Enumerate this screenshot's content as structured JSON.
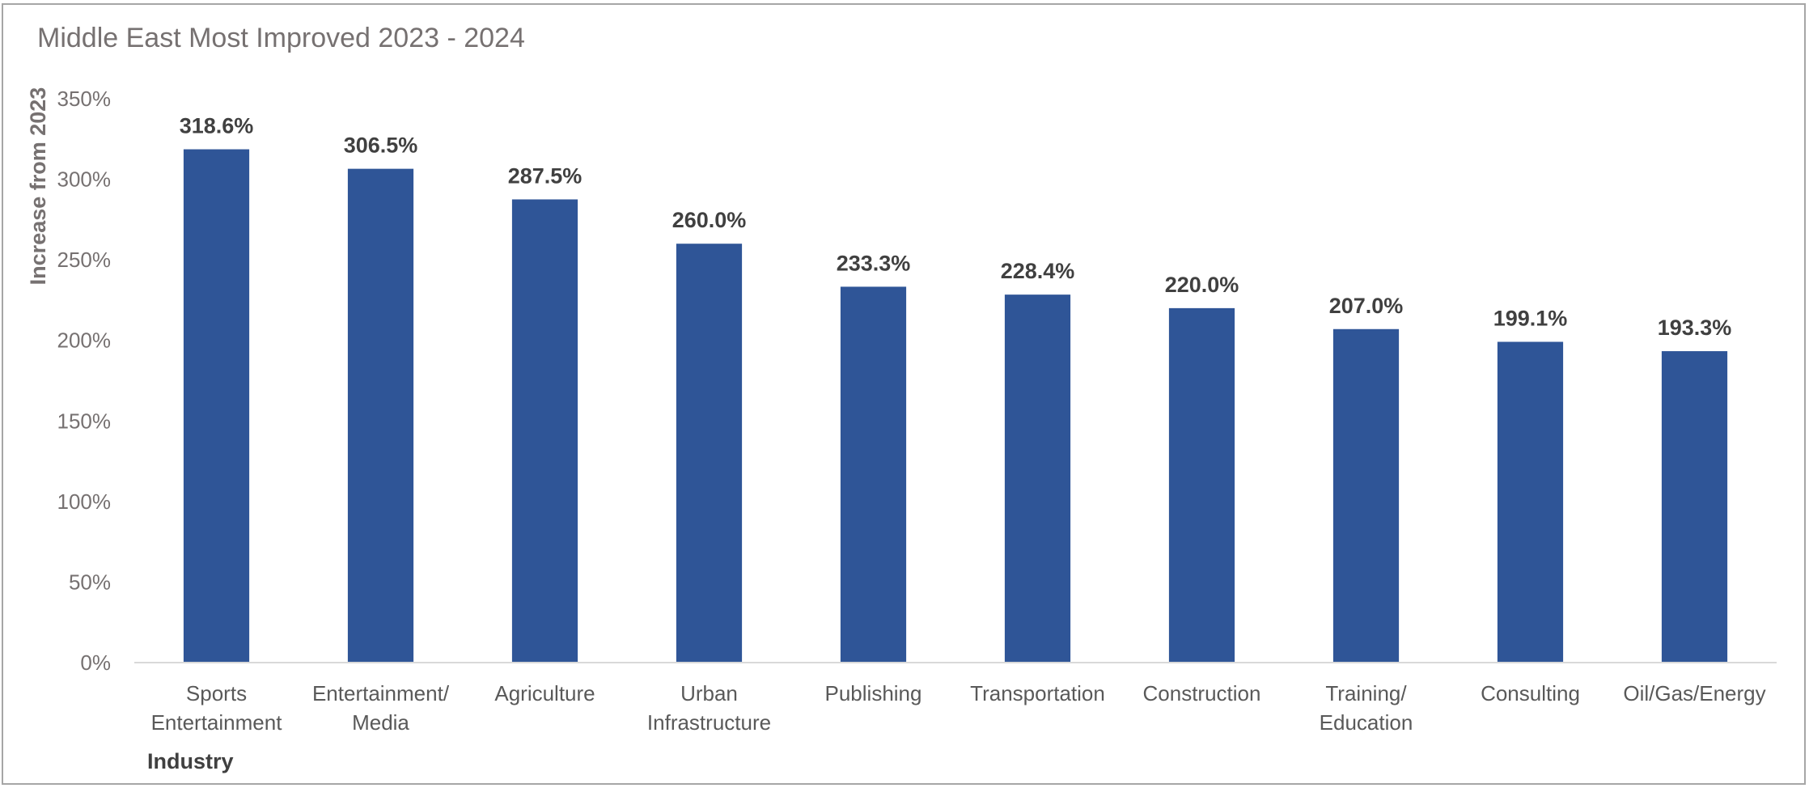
{
  "chart_data": {
    "type": "bar",
    "title": "Middle East Most Improved 2023 - 2024",
    "xlabel": "Industry",
    "ylabel": "Increase from 2023",
    "ylim": [
      0,
      350
    ],
    "yticks": [
      0,
      50,
      100,
      150,
      200,
      250,
      300,
      350
    ],
    "ytick_labels": [
      "0%",
      "50%",
      "100%",
      "150%",
      "200%",
      "250%",
      "300%",
      "350%"
    ],
    "grid": false,
    "bar_color": "#2f5597",
    "categories": [
      [
        "Sports",
        "Entertainment"
      ],
      [
        "Entertainment/",
        "Media"
      ],
      [
        "Agriculture"
      ],
      [
        "Urban",
        "Infrastructure"
      ],
      [
        "Publishing"
      ],
      [
        "Transportation"
      ],
      [
        "Construction"
      ],
      [
        "Training/",
        "Education"
      ],
      [
        "Consulting"
      ],
      [
        "Oil/Gas/Energy"
      ]
    ],
    "values": [
      318.6,
      306.5,
      287.5,
      260.0,
      233.3,
      228.4,
      220.0,
      207.0,
      199.1,
      193.3
    ],
    "data_labels": [
      "318.6%",
      "306.5%",
      "287.5%",
      "260.0%",
      "233.3%",
      "228.4%",
      "220.0%",
      "207.0%",
      "199.1%",
      "193.3%"
    ]
  }
}
